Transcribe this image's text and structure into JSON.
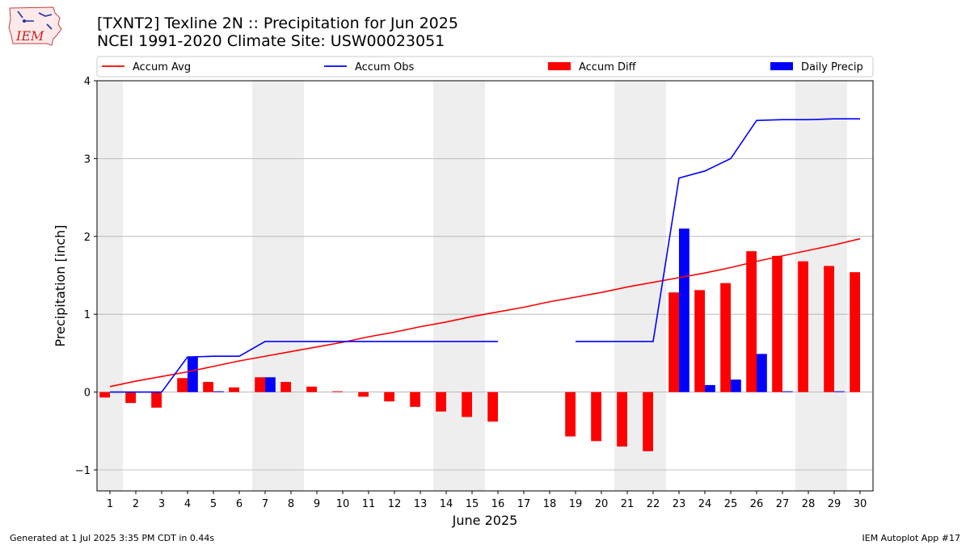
{
  "header": {
    "title": "[TXNT2] Texline 2N :: Precipitation for Jun 2025",
    "subtitle": "NCEI 1991-2020 Climate Site: USW00023051",
    "logo_text": "IEM"
  },
  "footer": {
    "generated": "Generated at 1 Jul 2025 3:35 PM CDT in 0.44s",
    "app": "IEM Autoplot App #17"
  },
  "colors": {
    "avg": "#ff0000",
    "obs": "#0000ff",
    "diff": "#ff0000",
    "daily": "#0000ff",
    "weekend_band": "#eeeeee",
    "grid": "#b0b0b0"
  },
  "chart_data": {
    "type": "bar",
    "title": "[TXNT2] Texline 2N :: Precipitation for Jun 2025",
    "xlabel": "June 2025",
    "ylabel": "Precipitation [inch]",
    "ylim": [
      -1.27,
      4.0
    ],
    "xlim": [
      0.5,
      30.5
    ],
    "y_ticks": [
      -1,
      0,
      1,
      2,
      3,
      4
    ],
    "y_tick_labels": [
      "−1",
      "0",
      "1",
      "2",
      "3",
      "4"
    ],
    "grid": true,
    "legend_placement": "top, above plot",
    "days": [
      1,
      2,
      3,
      4,
      5,
      6,
      7,
      8,
      9,
      10,
      11,
      12,
      13,
      14,
      15,
      16,
      17,
      18,
      19,
      20,
      21,
      22,
      23,
      24,
      25,
      26,
      27,
      28,
      29,
      30
    ],
    "shaded_day_ranges": [
      [
        0.5,
        1.5
      ],
      [
        6.5,
        8.5
      ],
      [
        13.5,
        15.5
      ],
      [
        20.5,
        22.5
      ],
      [
        27.5,
        29.5
      ]
    ],
    "series": [
      {
        "name": "Accum Avg",
        "kind": "line",
        "values": [
          0.07,
          0.14,
          0.2,
          0.26,
          0.33,
          0.4,
          0.46,
          0.52,
          0.58,
          0.64,
          0.71,
          0.77,
          0.84,
          0.9,
          0.97,
          1.03,
          1.09,
          1.16,
          1.22,
          1.28,
          1.35,
          1.41,
          1.47,
          1.53,
          1.6,
          1.68,
          1.75,
          1.82,
          1.89,
          1.97
        ]
      },
      {
        "name": "Accum Obs",
        "kind": "line",
        "values": [
          0.0,
          0.0,
          0.0,
          0.45,
          0.46,
          0.46,
          0.65,
          0.65,
          0.65,
          0.65,
          0.65,
          0.65,
          0.65,
          0.65,
          0.65,
          0.65,
          null,
          null,
          0.65,
          0.65,
          0.65,
          0.65,
          2.75,
          2.84,
          3.0,
          3.49,
          3.5,
          3.5,
          3.51,
          3.51
        ]
      },
      {
        "name": "Accum Diff",
        "kind": "bar",
        "values": [
          -0.07,
          -0.14,
          -0.2,
          0.18,
          0.13,
          0.06,
          0.19,
          0.13,
          0.07,
          0.01,
          -0.06,
          -0.12,
          -0.19,
          -0.25,
          -0.32,
          -0.38,
          null,
          null,
          -0.57,
          -0.63,
          -0.7,
          -0.76,
          1.28,
          1.31,
          1.4,
          1.81,
          1.75,
          1.68,
          1.62,
          1.54
        ]
      },
      {
        "name": "Daily Precip",
        "kind": "bar",
        "values": [
          0.0,
          0.0,
          0.0,
          0.45,
          0.01,
          0.0,
          0.19,
          0.0,
          0.0,
          0.0,
          0.0,
          0.0,
          0.0,
          0.0,
          0.0,
          0.0,
          null,
          null,
          0.0,
          0.0,
          0.0,
          0.0,
          2.1,
          0.09,
          0.16,
          0.49,
          0.01,
          0.0,
          0.01,
          0.0
        ]
      }
    ]
  }
}
